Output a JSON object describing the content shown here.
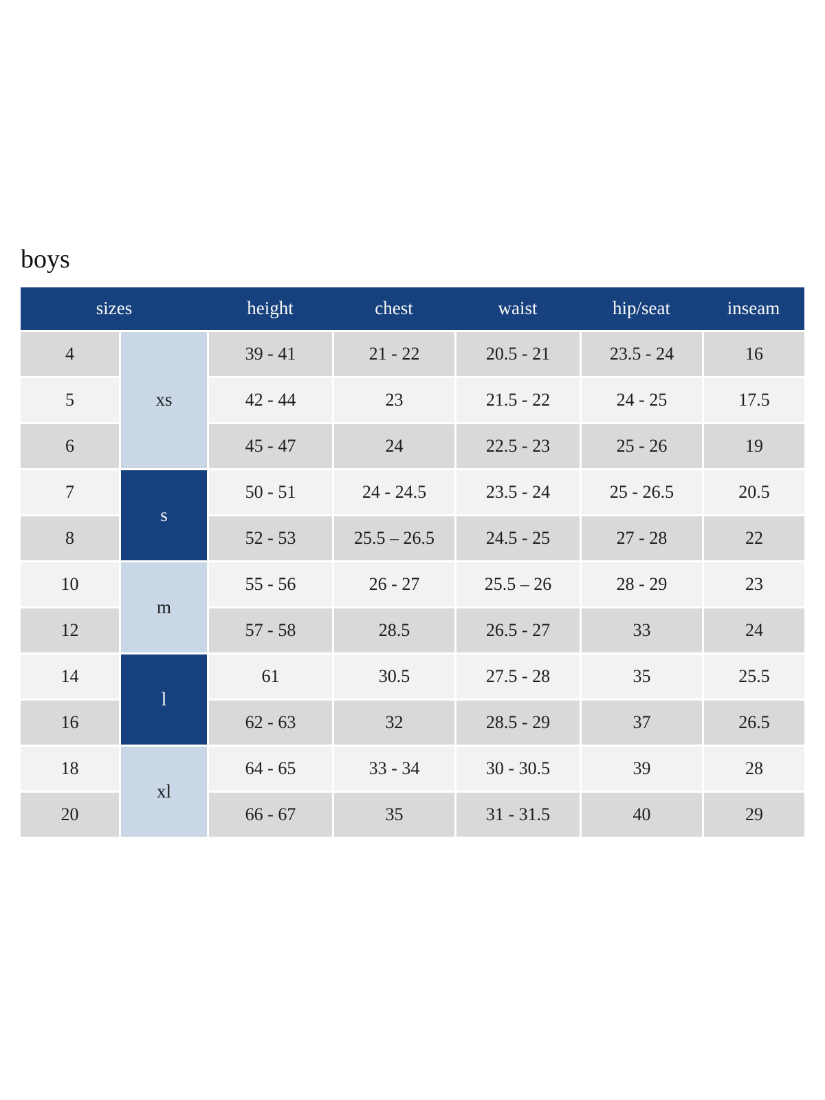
{
  "page": {
    "title": "boys"
  },
  "colors": {
    "header_bg": "#17417e",
    "group_dark_bg": "#17417e",
    "group_light_bg": "#c9d7e7",
    "row_odd_bg": "#d9d9d9",
    "row_even_bg": "#f2f2f2",
    "header_text": "#fafafa",
    "cell_text": "#1d1d1d",
    "title_text": "#111111"
  },
  "table": {
    "headers": [
      "sizes",
      "height",
      "chest",
      "waist",
      "hip/seat",
      "inseam"
    ],
    "groups": [
      {
        "label": "xs",
        "rows": 3,
        "style": "light"
      },
      {
        "label": "s",
        "rows": 2,
        "style": "dark"
      },
      {
        "label": "m",
        "rows": 2,
        "style": "light"
      },
      {
        "label": "l",
        "rows": 2,
        "style": "dark"
      },
      {
        "label": "xl",
        "rows": 2,
        "style": "light"
      }
    ],
    "rows": [
      {
        "size": "4",
        "height": "39 - 41",
        "chest": "21 - 22",
        "waist": "20.5 - 21",
        "hip_seat": "23.5 - 24",
        "inseam": "16"
      },
      {
        "size": "5",
        "height": "42 - 44",
        "chest": "23",
        "waist": "21.5 - 22",
        "hip_seat": "24 - 25",
        "inseam": "17.5"
      },
      {
        "size": "6",
        "height": "45 - 47",
        "chest": "24",
        "waist": "22.5 - 23",
        "hip_seat": "25 - 26",
        "inseam": "19"
      },
      {
        "size": "7",
        "height": "50 - 51",
        "chest": "24 - 24.5",
        "waist": "23.5 - 24",
        "hip_seat": "25 - 26.5",
        "inseam": "20.5"
      },
      {
        "size": "8",
        "height": "52 - 53",
        "chest": "25.5 – 26.5",
        "waist": "24.5 - 25",
        "hip_seat": "27 - 28",
        "inseam": "22"
      },
      {
        "size": "10",
        "height": "55 - 56",
        "chest": "26 - 27",
        "waist": "25.5 – 26",
        "hip_seat": "28 - 29",
        "inseam": "23"
      },
      {
        "size": "12",
        "height": "57 - 58",
        "chest": "28.5",
        "waist": "26.5 - 27",
        "hip_seat": "33",
        "inseam": "24"
      },
      {
        "size": "14",
        "height": "61",
        "chest": "30.5",
        "waist": "27.5 - 28",
        "hip_seat": "35",
        "inseam": "25.5"
      },
      {
        "size": "16",
        "height": "62 - 63",
        "chest": "32",
        "waist": "28.5 - 29",
        "hip_seat": "37",
        "inseam": "26.5"
      },
      {
        "size": "18",
        "height": "64 - 65",
        "chest": "33 - 34",
        "waist": "30 - 30.5",
        "hip_seat": "39",
        "inseam": "28"
      },
      {
        "size": "20",
        "height": "66 - 67",
        "chest": "35",
        "waist": "31 - 31.5",
        "hip_seat": "40",
        "inseam": "29"
      }
    ]
  }
}
